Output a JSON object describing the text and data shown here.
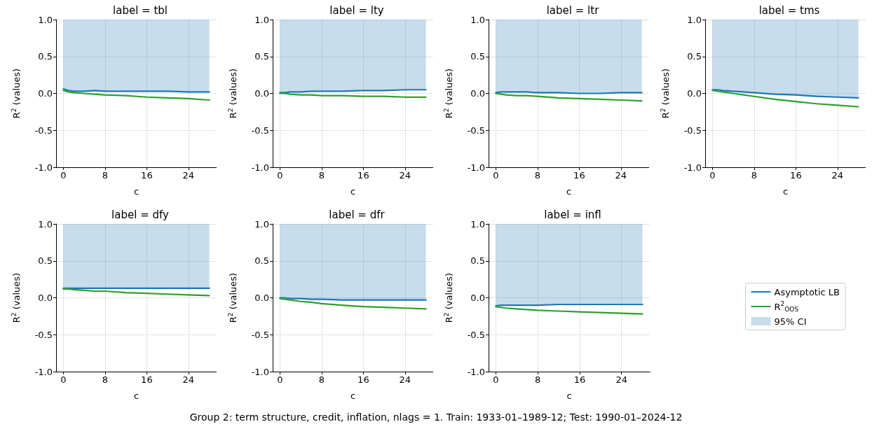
{
  "chart_data": [
    {
      "type": "line",
      "title": "label = tbl",
      "xlabel": "c",
      "ylabel": "R$^{2}$ (values)",
      "x": [
        0,
        1,
        2,
        4,
        6,
        8,
        12,
        16,
        20,
        24,
        28
      ],
      "xlim": [
        -1.4,
        29.4
      ],
      "xticks": [
        0,
        8,
        16,
        24
      ],
      "ylim": [
        -1,
        1
      ],
      "yticks": [
        {
          "value": -1,
          "label": "-1.0"
        },
        {
          "value": -0.5,
          "label": "-0.5"
        },
        {
          "value": 0,
          "label": "0.0"
        },
        {
          "value": 0.5,
          "label": "0.5"
        },
        {
          "value": 1,
          "label": "1.0"
        }
      ],
      "grid": true,
      "line_style": "solid",
      "series": [
        {
          "color": "#1f77b4",
          "values": [
            0.06,
            0.04,
            0.03,
            0.03,
            0.04,
            0.03,
            0.03,
            0.03,
            0.03,
            0.02,
            0.02
          ],
          "lower": [
            0.06,
            0.04,
            0.03,
            0.03,
            0.04,
            0.03,
            0.03,
            0.03,
            0.03,
            0.02,
            0.02
          ],
          "upper": [
            1,
            1,
            1,
            1,
            1,
            1,
            1,
            1,
            1,
            1,
            1
          ]
        },
        {
          "color": "#2ca02c",
          "values": [
            0.04,
            0.02,
            0.01,
            0,
            -0.01,
            -0.02,
            -0.03,
            -0.05,
            -0.06,
            -0.07,
            -0.09
          ]
        }
      ]
    },
    {
      "type": "line",
      "title": "label = lty",
      "xlabel": "c",
      "ylabel": "R$^{2}$ (values)",
      "x": [
        0,
        1,
        2,
        4,
        6,
        8,
        12,
        16,
        20,
        24,
        28
      ],
      "xlim": [
        -1.4,
        29.4
      ],
      "xticks": [
        0,
        8,
        16,
        24
      ],
      "ylim": [
        -1,
        1
      ],
      "yticks": [
        {
          "value": -1,
          "label": "-1.0"
        },
        {
          "value": -0.5,
          "label": "-0.5"
        },
        {
          "value": 0,
          "label": "0.0"
        },
        {
          "value": 0.5,
          "label": "0.5"
        },
        {
          "value": 1,
          "label": "1.0"
        }
      ],
      "grid": true,
      "line_style": "solid",
      "series": [
        {
          "color": "#1f77b4",
          "values": [
            0.01,
            0.01,
            0.02,
            0.02,
            0.03,
            0.03,
            0.03,
            0.04,
            0.04,
            0.05,
            0.05
          ],
          "lower": [
            0.01,
            0.01,
            0.02,
            0.02,
            0.03,
            0.03,
            0.03,
            0.04,
            0.04,
            0.05,
            0.05
          ],
          "upper": [
            1,
            1,
            1,
            1,
            1,
            1,
            1,
            1,
            1,
            1,
            1
          ]
        },
        {
          "color": "#2ca02c",
          "values": [
            0,
            0,
            -0.01,
            -0.02,
            -0.02,
            -0.03,
            -0.03,
            -0.04,
            -0.04,
            -0.05,
            -0.05
          ]
        }
      ]
    },
    {
      "type": "line",
      "title": "label = ltr",
      "xlabel": "c",
      "ylabel": "R$^{2}$ (values)",
      "x": [
        0,
        1,
        2,
        4,
        6,
        8,
        12,
        16,
        20,
        24,
        28
      ],
      "xlim": [
        -1.4,
        29.4
      ],
      "xticks": [
        0,
        8,
        16,
        24
      ],
      "ylim": [
        -1,
        1
      ],
      "yticks": [
        {
          "value": -1,
          "label": "-1.0"
        },
        {
          "value": -0.5,
          "label": "-0.5"
        },
        {
          "value": 0,
          "label": "0.0"
        },
        {
          "value": 0.5,
          "label": "0.5"
        },
        {
          "value": 1,
          "label": "1.0"
        }
      ],
      "grid": true,
      "line_style": "solid",
      "series": [
        {
          "color": "#1f77b4",
          "values": [
            0.01,
            0.02,
            0.02,
            0.02,
            0.02,
            0.01,
            0.01,
            0,
            0,
            0.01,
            0.01
          ],
          "lower": [
            0.01,
            0.02,
            0.02,
            0.02,
            0.02,
            0.01,
            0.01,
            0,
            0,
            0.01,
            0.01
          ],
          "upper": [
            1,
            1,
            1,
            1,
            1,
            1,
            1,
            1,
            1,
            1,
            1
          ]
        },
        {
          "color": "#2ca02c",
          "values": [
            0,
            -0.01,
            -0.02,
            -0.03,
            -0.03,
            -0.04,
            -0.06,
            -0.07,
            -0.08,
            -0.09,
            -0.1
          ]
        }
      ]
    },
    {
      "type": "line",
      "title": "label = tms",
      "xlabel": "c",
      "ylabel": "R$^{2}$ (values)",
      "x": [
        0,
        1,
        2,
        4,
        6,
        8,
        12,
        16,
        20,
        24,
        28
      ],
      "xlim": [
        -1.4,
        29.4
      ],
      "xticks": [
        0,
        8,
        16,
        24
      ],
      "ylim": [
        -1,
        1
      ],
      "yticks": [
        {
          "value": -1,
          "label": "-1.0"
        },
        {
          "value": -0.5,
          "label": "-0.5"
        },
        {
          "value": 0,
          "label": "0.0"
        },
        {
          "value": 0.5,
          "label": "0.5"
        },
        {
          "value": 1,
          "label": "1.0"
        }
      ],
      "grid": true,
      "line_style": "solid",
      "series": [
        {
          "color": "#1f77b4",
          "values": [
            0.05,
            0.05,
            0.04,
            0.03,
            0.02,
            0.01,
            -0.01,
            -0.02,
            -0.04,
            -0.05,
            -0.06
          ],
          "lower": [
            0.05,
            0.05,
            0.04,
            0.03,
            0.02,
            0.01,
            -0.01,
            -0.02,
            -0.04,
            -0.05,
            -0.06
          ],
          "upper": [
            1,
            1,
            1,
            1,
            1,
            1,
            1,
            1,
            1,
            1,
            1
          ]
        },
        {
          "color": "#2ca02c",
          "values": [
            0.04,
            0.03,
            0.02,
            0,
            -0.02,
            -0.04,
            -0.08,
            -0.11,
            -0.14,
            -0.16,
            -0.18
          ]
        }
      ]
    },
    {
      "type": "line",
      "title": "label = dfy",
      "xlabel": "c",
      "ylabel": "R$^{2}$ (values)",
      "x": [
        0,
        1,
        2,
        4,
        6,
        8,
        12,
        16,
        20,
        24,
        28
      ],
      "xlim": [
        -1.4,
        29.4
      ],
      "xticks": [
        0,
        8,
        16,
        24
      ],
      "ylim": [
        -1,
        1
      ],
      "yticks": [
        {
          "value": -1,
          "label": "-1.0"
        },
        {
          "value": -0.5,
          "label": "-0.5"
        },
        {
          "value": 0,
          "label": "0.0"
        },
        {
          "value": 0.5,
          "label": "0.5"
        },
        {
          "value": 1,
          "label": "1.0"
        }
      ],
      "grid": true,
      "line_style": "solid",
      "series": [
        {
          "color": "#1f77b4",
          "values": [
            0.13,
            0.13,
            0.13,
            0.13,
            0.13,
            0.13,
            0.13,
            0.13,
            0.13,
            0.13,
            0.13
          ],
          "lower": [
            0.13,
            0.13,
            0.13,
            0.13,
            0.13,
            0.13,
            0.13,
            0.13,
            0.13,
            0.13,
            0.13
          ],
          "upper": [
            1,
            1,
            1,
            1,
            1,
            1,
            1,
            1,
            1,
            1,
            1
          ]
        },
        {
          "color": "#2ca02c",
          "values": [
            0.12,
            0.12,
            0.11,
            0.1,
            0.09,
            0.09,
            0.07,
            0.06,
            0.05,
            0.04,
            0.03
          ]
        }
      ]
    },
    {
      "type": "line",
      "title": "label = dfr",
      "xlabel": "c",
      "ylabel": "R$^{2}$ (values)",
      "x": [
        0,
        1,
        2,
        4,
        6,
        8,
        12,
        16,
        20,
        24,
        28
      ],
      "xlim": [
        -1.4,
        29.4
      ],
      "xticks": [
        0,
        8,
        16,
        24
      ],
      "ylim": [
        -1,
        1
      ],
      "yticks": [
        {
          "value": -1,
          "label": "-1.0"
        },
        {
          "value": -0.5,
          "label": "-0.5"
        },
        {
          "value": 0,
          "label": "0.0"
        },
        {
          "value": 0.5,
          "label": "0.5"
        },
        {
          "value": 1,
          "label": "1.0"
        }
      ],
      "grid": true,
      "line_style": "solid",
      "series": [
        {
          "color": "#1f77b4",
          "values": [
            0,
            0,
            -0.01,
            -0.01,
            -0.02,
            -0.02,
            -0.03,
            -0.03,
            -0.03,
            -0.03,
            -0.03
          ],
          "lower": [
            0,
            0,
            -0.01,
            -0.01,
            -0.02,
            -0.02,
            -0.03,
            -0.03,
            -0.03,
            -0.03,
            -0.03
          ],
          "upper": [
            1,
            1,
            1,
            1,
            1,
            1,
            1,
            1,
            1,
            1,
            1
          ]
        },
        {
          "color": "#2ca02c",
          "values": [
            -0.01,
            -0.02,
            -0.03,
            -0.05,
            -0.06,
            -0.08,
            -0.1,
            -0.12,
            -0.13,
            -0.14,
            -0.15
          ]
        }
      ]
    },
    {
      "type": "line",
      "title": "label = infl",
      "xlabel": "c",
      "ylabel": "R$^{2}$ (values)",
      "x": [
        0,
        1,
        2,
        4,
        6,
        8,
        12,
        16,
        20,
        24,
        28
      ],
      "xlim": [
        -1.4,
        29.4
      ],
      "xticks": [
        0,
        8,
        16,
        24
      ],
      "ylim": [
        -1,
        1
      ],
      "yticks": [
        {
          "value": -1,
          "label": "-1.0"
        },
        {
          "value": -0.5,
          "label": "-0.5"
        },
        {
          "value": 0,
          "label": "0.0"
        },
        {
          "value": 0.5,
          "label": "0.5"
        },
        {
          "value": 1,
          "label": "1.0"
        }
      ],
      "grid": true,
      "line_style": "solid",
      "legend": "right",
      "annotations": [
        "95% CI",
        "Group 2: term structure, credit, inflation, nlags = 1. Train: 1933-01–1989-12; Test: 1990-01–2024-12"
      ],
      "series": [
        {
          "name": "Asymptotic LB",
          "color": "#1f77b4",
          "values": [
            -0.11,
            -0.1,
            -0.1,
            -0.1,
            -0.1,
            -0.1,
            -0.09,
            -0.09,
            -0.09,
            -0.09,
            -0.09
          ],
          "lower": [
            -0.11,
            -0.1,
            -0.1,
            -0.1,
            -0.1,
            -0.1,
            -0.09,
            -0.09,
            -0.09,
            -0.09,
            -0.09
          ],
          "upper": [
            1,
            1,
            1,
            1,
            1,
            1,
            1,
            1,
            1,
            1,
            1
          ]
        },
        {
          "name": "R$^{2}$$_{OOS}$",
          "color": "#2ca02c",
          "values": [
            -0.12,
            -0.13,
            -0.14,
            -0.15,
            -0.16,
            -0.17,
            -0.18,
            -0.19,
            -0.2,
            -0.21,
            -0.22
          ]
        }
      ]
    }
  ]
}
